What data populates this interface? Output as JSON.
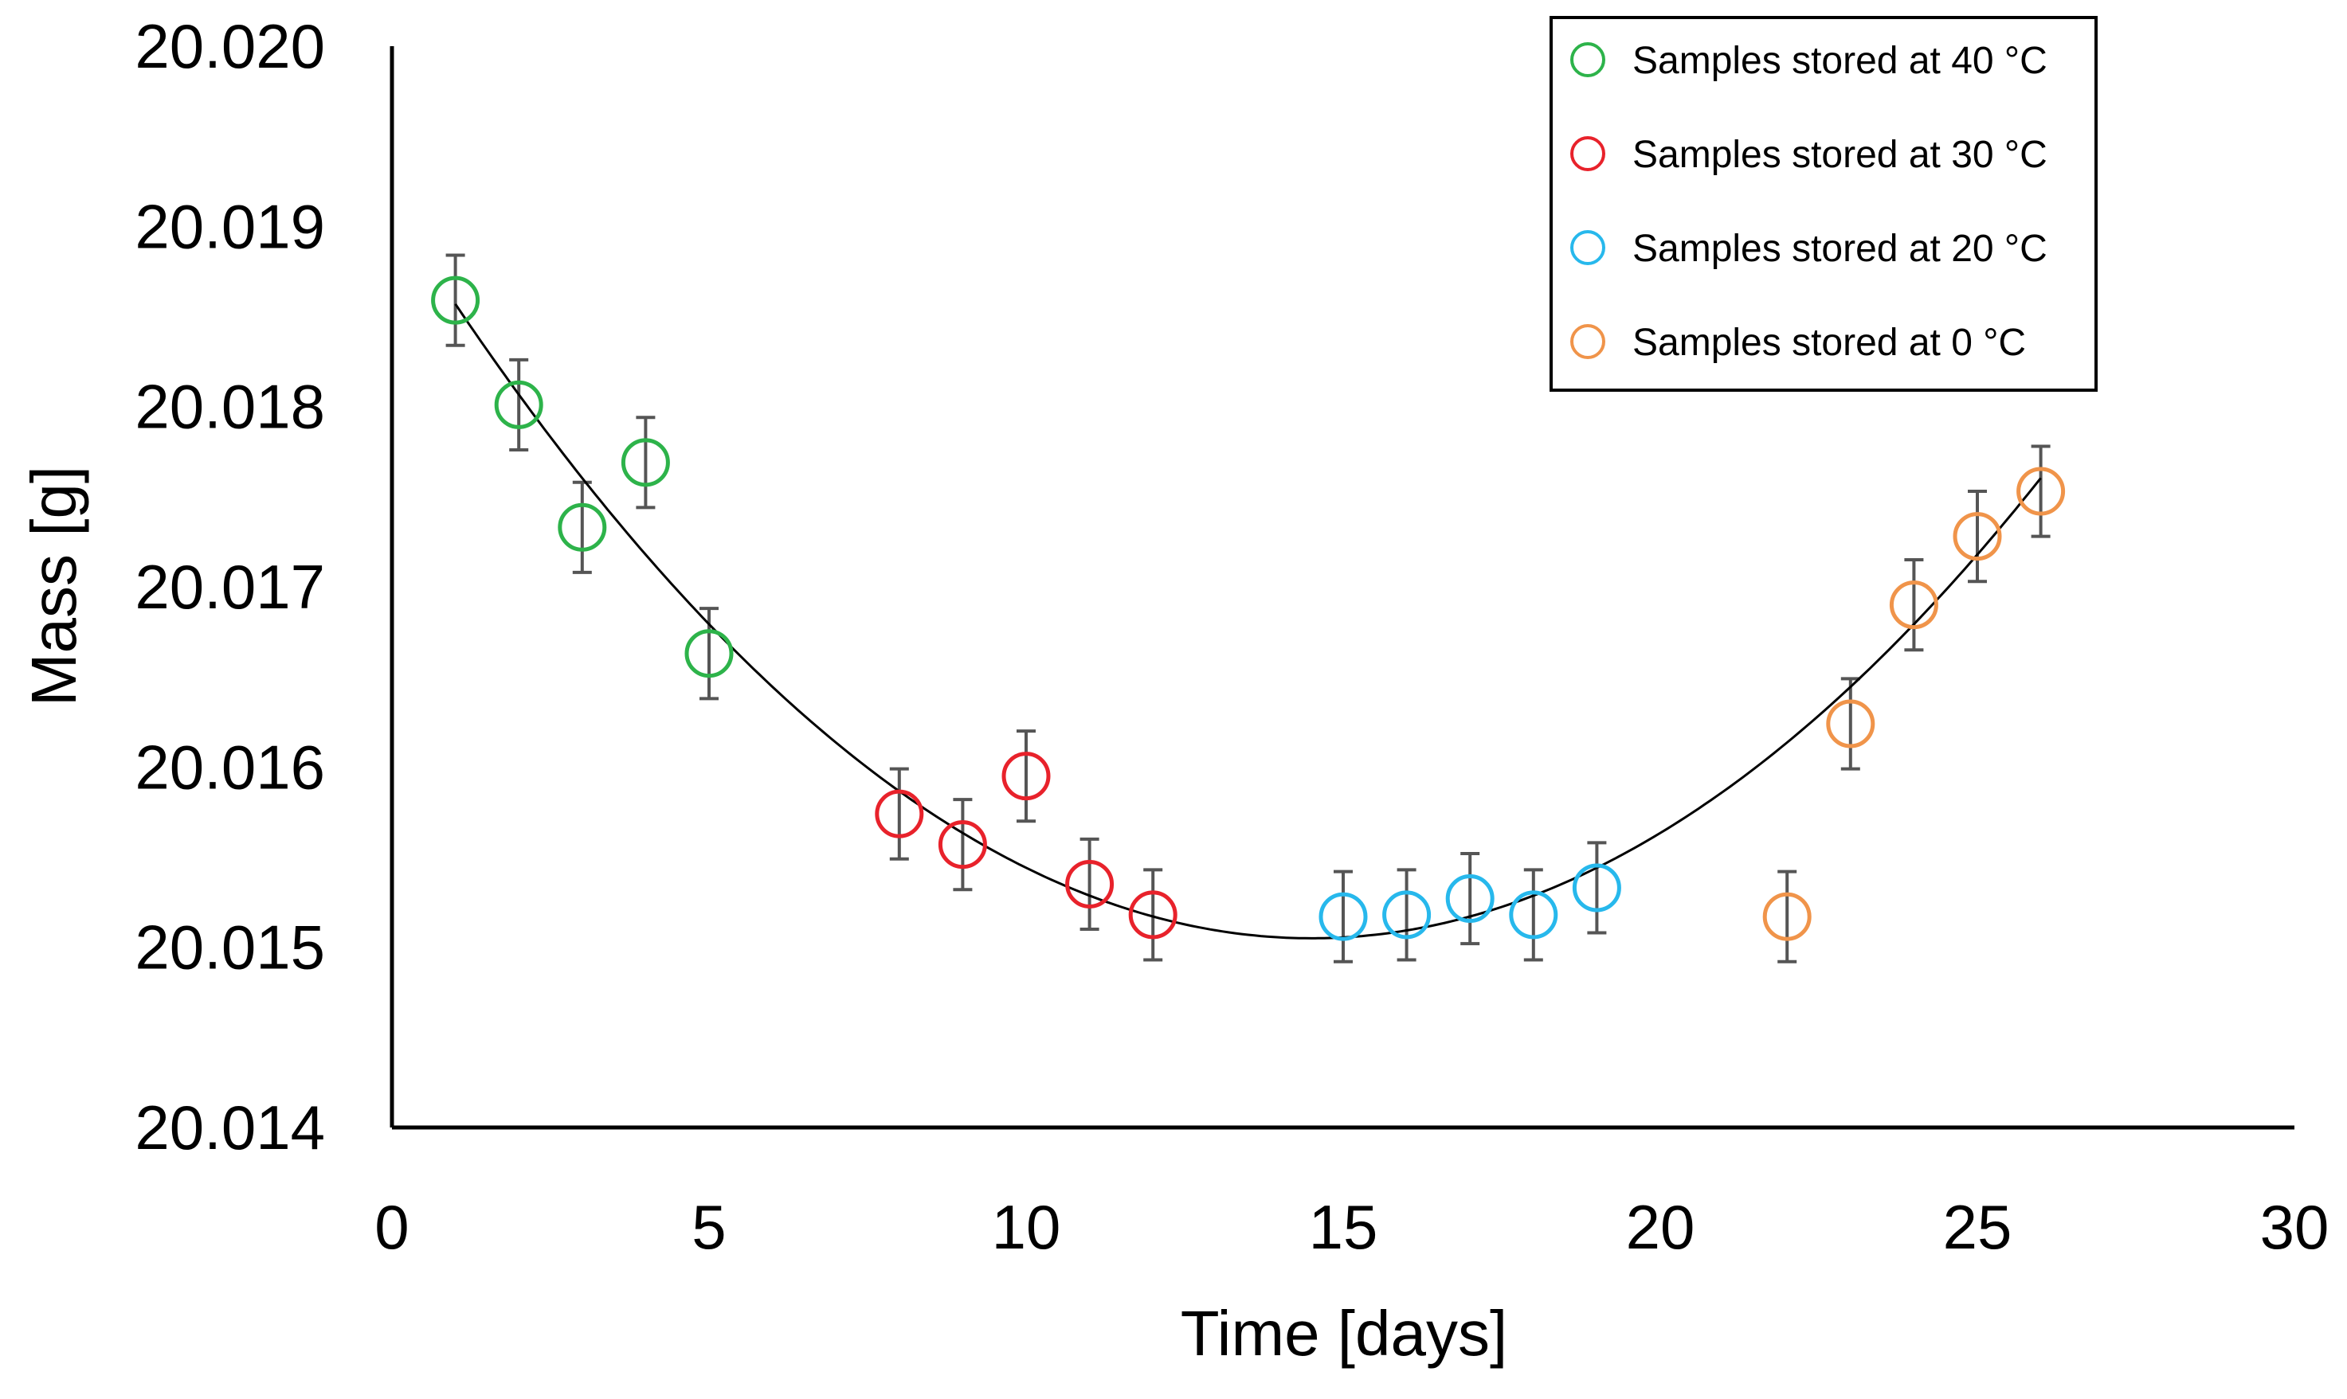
{
  "chart_data": {
    "type": "scatter",
    "title": "",
    "xlabel": "Time [days]",
    "ylabel": "Mass [g]",
    "xlim": [
      0,
      30
    ],
    "ylim": [
      20.014,
      20.02
    ],
    "xticks": [
      0,
      5,
      10,
      15,
      20,
      25,
      30
    ],
    "xtick_labels": [
      "0",
      "5",
      "10",
      "15",
      "20",
      "25",
      "30"
    ],
    "yticks": [
      20.014,
      20.015,
      20.016,
      20.017,
      20.018,
      20.019,
      20.02
    ],
    "ytick_labels": [
      "20.014",
      "20.015",
      "20.016",
      "20.017",
      "20.018",
      "20.019",
      "20.020"
    ],
    "grid": false,
    "legend_position": "top-right",
    "error_bar": 0.00025,
    "series": [
      {
        "name": "Samples stored at 40 °C",
        "color": "#2db34a",
        "x": [
          1,
          2,
          3,
          4,
          5
        ],
        "y": [
          20.01859,
          20.01801,
          20.01733,
          20.01769,
          20.01663
        ]
      },
      {
        "name": "Samples stored at 30 °C",
        "color": "#e8222b",
        "x": [
          8,
          9,
          10,
          11,
          12
        ],
        "y": [
          20.01574,
          20.01557,
          20.01595,
          20.01535,
          20.01518
        ]
      },
      {
        "name": "Samples stored at 20 °C",
        "color": "#27b8ec",
        "x": [
          15,
          16,
          17,
          18,
          19
        ],
        "y": [
          20.01517,
          20.01518,
          20.01527,
          20.01518,
          20.01533
        ]
      },
      {
        "name": "Samples stored at 0 °C",
        "color": "#f0944a",
        "x": [
          22,
          23,
          24,
          25,
          26
        ],
        "y": [
          20.01517,
          20.01624,
          20.0169,
          20.01728,
          20.01753
        ]
      }
    ],
    "trendline": {
      "type": "quadratic",
      "color": "#000000",
      "x_range": [
        1,
        26
      ],
      "vertex_x": 14.5,
      "vertex_y": 20.01505,
      "a": 1.931e-05
    }
  }
}
